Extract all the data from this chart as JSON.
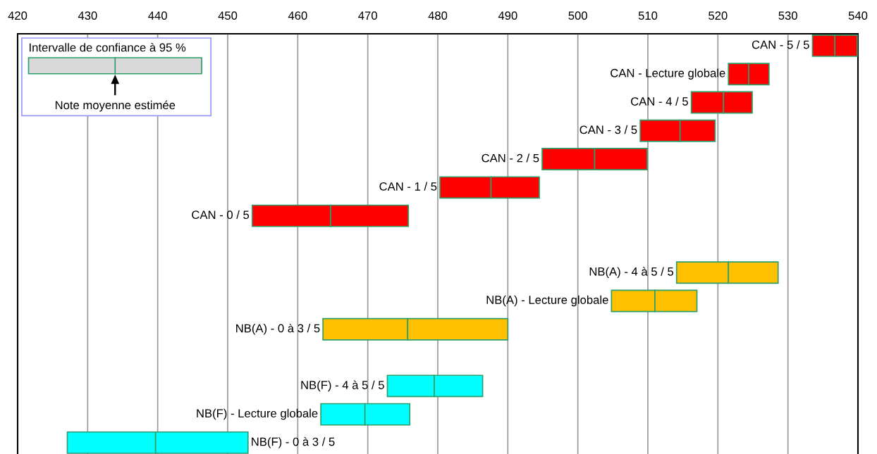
{
  "chart_data": {
    "type": "bar",
    "orientation": "horizontal",
    "categories": [
      "CAN - 5 / 5",
      "CAN - Lecture globale",
      "CAN - 4 / 5",
      "CAN - 3 / 5",
      "CAN - 2 / 5",
      "CAN - 1 / 5",
      "CAN - 0 / 5",
      null,
      "NB(A) - 4 à 5 / 5",
      "NB(A) - Lecture globale",
      "NB(A) - 0 à 3 / 5",
      null,
      "NB(F) - 4 à 5 / 5",
      "NB(F) - Lecture globale",
      "NB(F) - 0 à 3 / 5"
    ],
    "series": [
      {
        "colors": [
          "#ff0000",
          "#ff0000",
          "#ff0000",
          "#ff0000",
          "#ff0000",
          "#ff0000",
          "#ff0000",
          null,
          "#ffc000",
          "#ffc000",
          "#ffc000",
          null,
          "#00ffff",
          "#00ffff",
          "#00ffff"
        ],
        "base": [
          533.5,
          521.5,
          516.2,
          508.9,
          494.9,
          480.3,
          453.5,
          null,
          514.1,
          504.8,
          463.6,
          null,
          472.8,
          463.3,
          427.1
        ],
        "values": [
          3.2,
          2.9,
          4.6,
          5.7,
          7.5,
          7.3,
          11.2,
          null,
          7.4,
          6.2,
          12.1,
          null,
          6.7,
          6.3,
          12.6
        ]
      },
      {
        "colors": [
          "#ff0000",
          "#ff0000",
          "#ff0000",
          "#ff0000",
          "#ff0000",
          "#ff0000",
          "#ff0000",
          null,
          "#ffc000",
          "#ffc000",
          "#ffc000",
          null,
          "#00ffff",
          "#00ffff",
          "#00ffff"
        ],
        "base": [
          536.7,
          524.4,
          520.8,
          514.6,
          502.4,
          487.6,
          464.7,
          null,
          521.5,
          511.0,
          475.7,
          null,
          479.5,
          469.6,
          439.7
        ],
        "values": [
          3.2,
          2.9,
          4.1,
          5.0,
          7.5,
          6.9,
          11.1,
          null,
          7.1,
          6.0,
          14.3,
          null,
          6.9,
          6.4,
          13.2
        ]
      }
    ],
    "xlim": [
      420,
      540
    ],
    "xticks": [
      420,
      430,
      440,
      450,
      460,
      470,
      480,
      490,
      500,
      510,
      520,
      530,
      540
    ],
    "grid": "x",
    "annotations": [
      "Intervalle de confiance à 95 %",
      "Note moyenne estimée"
    ]
  }
}
